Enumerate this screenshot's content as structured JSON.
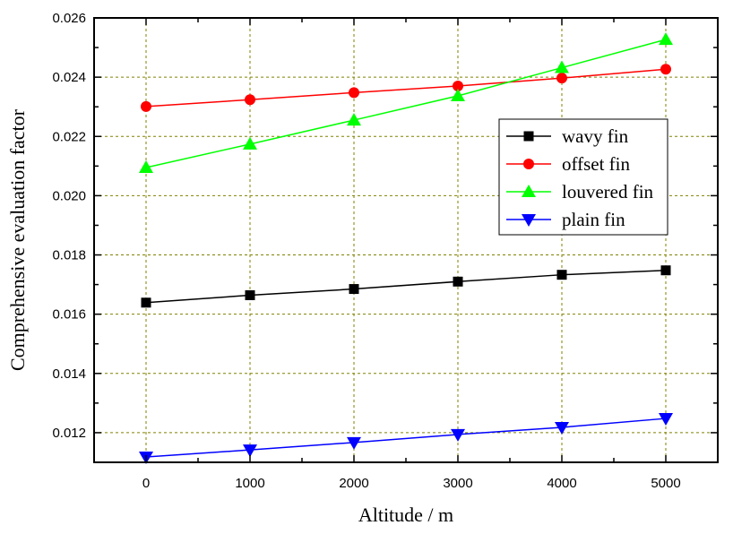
{
  "chart_data": {
    "type": "line",
    "title": "",
    "xlabel": "Altitude / m",
    "ylabel": "Comprehensive evaluation factor",
    "xlim": [
      -500,
      5500
    ],
    "ylim": [
      0.011,
      0.026
    ],
    "xticks": [
      "0",
      "1000",
      "2000",
      "3000",
      "4000",
      "5000"
    ],
    "yticks": [
      "0.012",
      "0.014",
      "0.016",
      "0.018",
      "0.020",
      "0.022",
      "0.024",
      "0.026"
    ],
    "grid": true,
    "legend_position": "center-right",
    "x": [
      0,
      1000,
      2000,
      3000,
      4000,
      5000
    ],
    "series": [
      {
        "name": "wavy fin",
        "color": "#000000",
        "marker": "square",
        "values": [
          0.01639,
          0.01664,
          0.01685,
          0.0171,
          0.01733,
          0.01748
        ]
      },
      {
        "name": "offset fin",
        "color": "#ff0000",
        "marker": "circle",
        "values": [
          0.02301,
          0.02324,
          0.02348,
          0.0237,
          0.02397,
          0.02427
        ]
      },
      {
        "name": "louvered fin",
        "color": "#00ff00",
        "marker": "triangle-up",
        "values": [
          0.02095,
          0.02174,
          0.02255,
          0.02337,
          0.02432,
          0.02527
        ]
      },
      {
        "name": "plain fin",
        "color": "#0000ff",
        "marker": "triangle-down",
        "values": [
          0.01118,
          0.01142,
          0.01167,
          0.01194,
          0.01218,
          0.01248
        ]
      }
    ]
  }
}
